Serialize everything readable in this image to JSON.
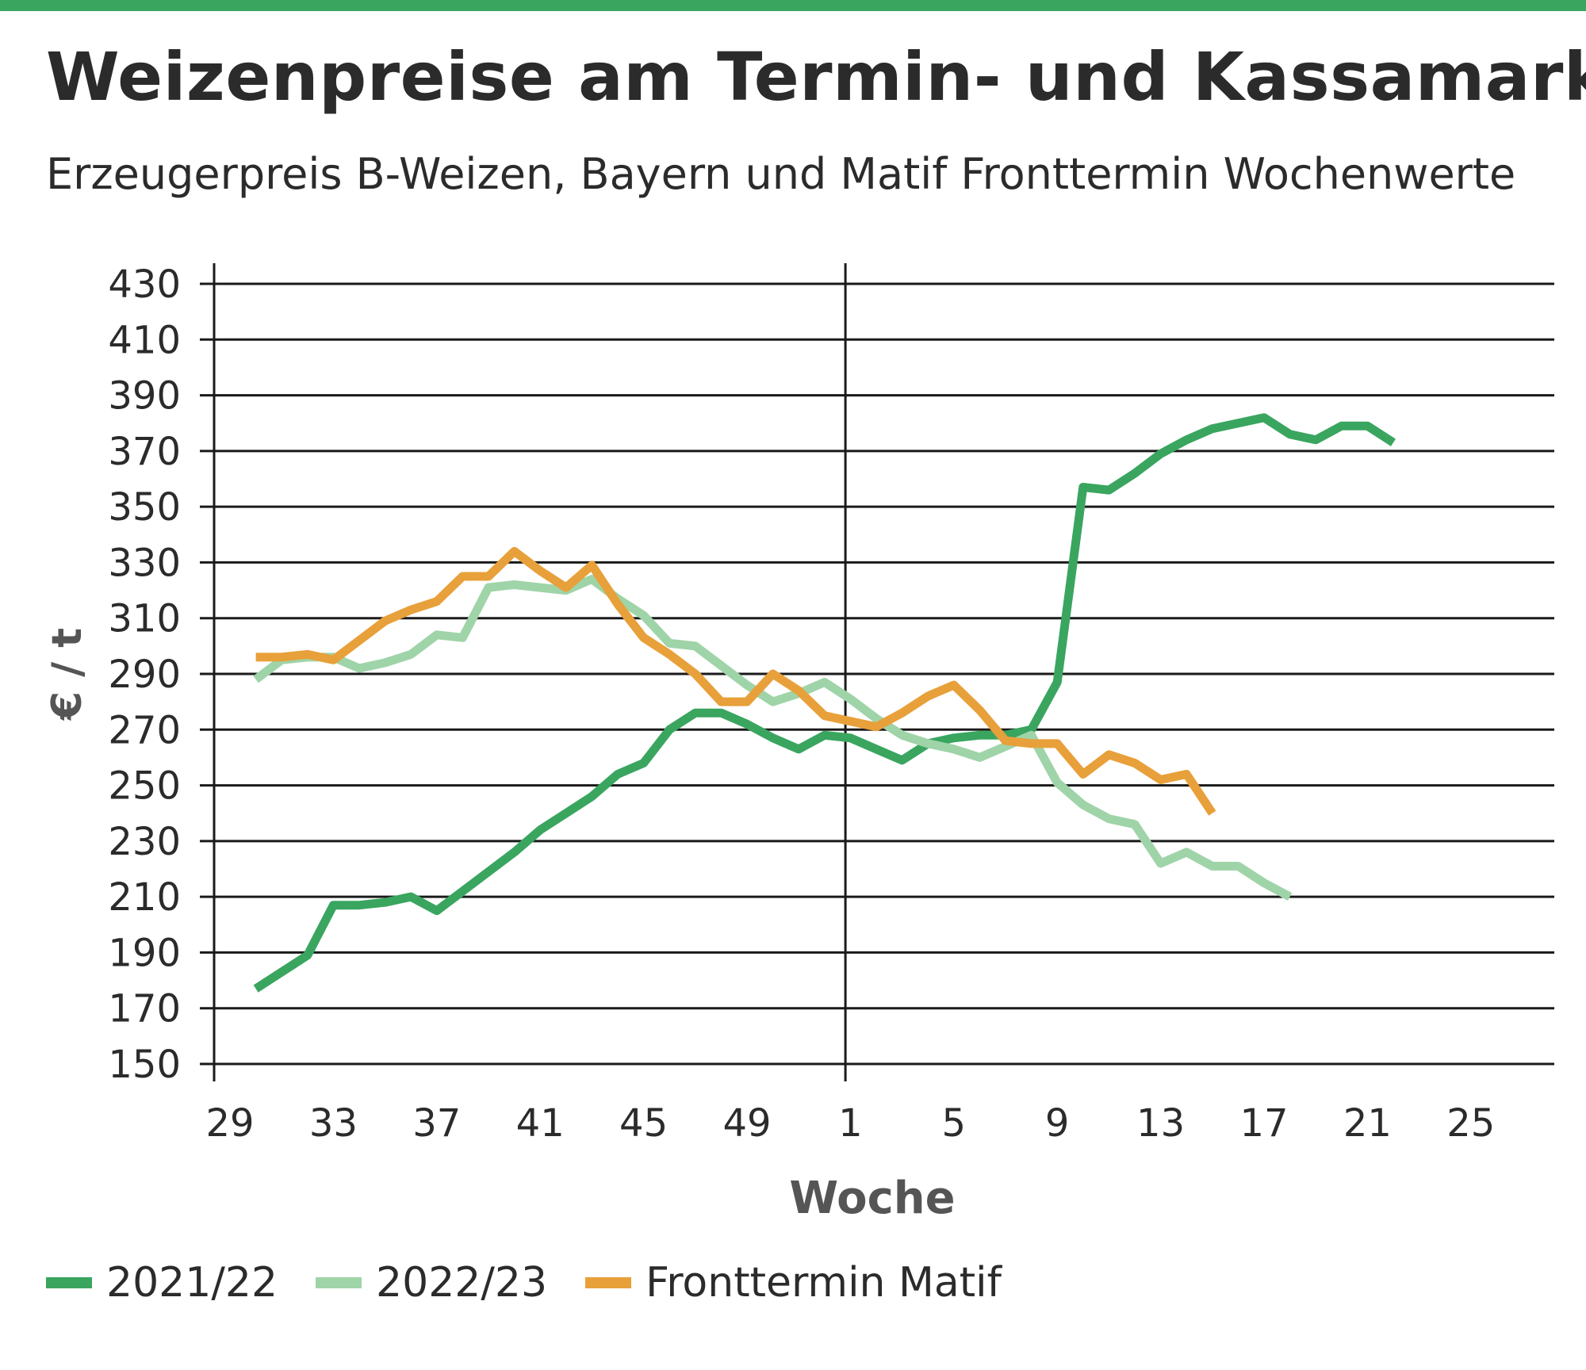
{
  "header": {
    "title": "Weizenpreise am Termin- und Kassamarkt",
    "subtitle": "Erzeugerpreis B-Weizen, Bayern und Matif Fronttermin Wochenwerte"
  },
  "colors": {
    "accent_bar": "#3aa55f",
    "series_2021_22": "#3aa55f",
    "series_2022_23": "#9fd4a8",
    "series_matif": "#e8a03a",
    "grid": "#1a1a1a"
  },
  "chart_data": {
    "type": "line",
    "title": "Weizenpreise am Termin- und Kassamarkt",
    "subtitle": "Erzeugerpreis B-Weizen, Bayern und Matif Fronttermin Wochenwerte",
    "xlabel": "Woche",
    "ylabel": "€ / t",
    "ylim": [
      150,
      430
    ],
    "yticks": [
      150,
      170,
      190,
      210,
      230,
      250,
      270,
      290,
      310,
      330,
      350,
      370,
      390,
      410,
      430
    ],
    "xticks": [
      "29",
      "33",
      "37",
      "41",
      "45",
      "49",
      "1",
      "5",
      "9",
      "13",
      "17",
      "21",
      "25"
    ],
    "x_weeks": [
      "30",
      "31",
      "32",
      "33",
      "34",
      "35",
      "36",
      "37",
      "38",
      "39",
      "40",
      "41",
      "42",
      "43",
      "44",
      "45",
      "46",
      "47",
      "48",
      "49",
      "50",
      "51",
      "52",
      "1",
      "2",
      "3",
      "4",
      "5",
      "6",
      "7",
      "8",
      "9",
      "10",
      "11",
      "12",
      "13",
      "14",
      "15",
      "16",
      "17",
      "18",
      "19",
      "20",
      "21",
      "22"
    ],
    "grid": true,
    "legend_position": "bottom-left",
    "series": [
      {
        "name": "2021/22",
        "color": "#3aa55f",
        "values": [
          177,
          183,
          189,
          207,
          207,
          208,
          210,
          205,
          212,
          219,
          226,
          234,
          240,
          246,
          254,
          258,
          270,
          276,
          276,
          272,
          267,
          263,
          268,
          267,
          263,
          259,
          265,
          267,
          268,
          268,
          270,
          287,
          357,
          356,
          362,
          369,
          374,
          378,
          380,
          382,
          376,
          374,
          379,
          379,
          373
        ]
      },
      {
        "name": "2022/23",
        "color": "#9fd4a8",
        "values": [
          288,
          295,
          296,
          296,
          292,
          294,
          297,
          304,
          303,
          321,
          322,
          321,
          320,
          324,
          317,
          311,
          301,
          300,
          293,
          286,
          280,
          283,
          287,
          281,
          274,
          268,
          265,
          263,
          260,
          264,
          268,
          251,
          243,
          238,
          236,
          222,
          226,
          221,
          221,
          215,
          210,
          null,
          null,
          null,
          null
        ]
      },
      {
        "name": "Fronttermin Matif",
        "color": "#e8a03a",
        "values": [
          296,
          296,
          297,
          295,
          302,
          309,
          313,
          316,
          325,
          325,
          334,
          327,
          321,
          329,
          315,
          303,
          297,
          290,
          280,
          280,
          290,
          284,
          275,
          273,
          271,
          276,
          282,
          286,
          277,
          266,
          265,
          265,
          254,
          261,
          258,
          252,
          254,
          240,
          null,
          null,
          null,
          null,
          null,
          null,
          null
        ]
      }
    ]
  }
}
